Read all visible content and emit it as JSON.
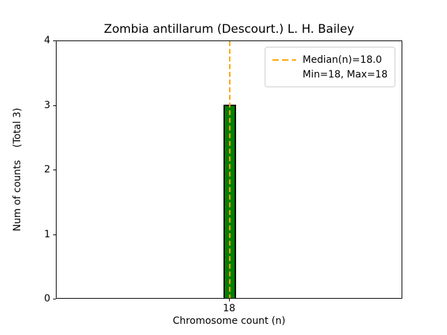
{
  "chart_data": {
    "type": "bar",
    "title": "Zombia antillarum (Descourt.) L. H. Bailey",
    "xlabel": "Chromosome count (n)",
    "ylabel": "Num of counts    (Total 3)",
    "categories": [
      "18"
    ],
    "values": [
      3
    ],
    "ylim": [
      0,
      4
    ],
    "yticks": [
      0,
      1,
      2,
      3,
      4
    ],
    "xticks": [
      "18"
    ],
    "total_counts": 3,
    "median": 18.0,
    "min": 18,
    "max": 18,
    "bar_color": "#008000",
    "bar_edge_color": "#000000",
    "median_line_color": "#FFA500",
    "legend": {
      "position": "upper right",
      "entries": [
        {
          "label": "Median(n)=18.0",
          "style": "dashed-line",
          "color": "#FFA500"
        },
        {
          "label": "Min=18, Max=18",
          "style": "none"
        }
      ]
    }
  }
}
